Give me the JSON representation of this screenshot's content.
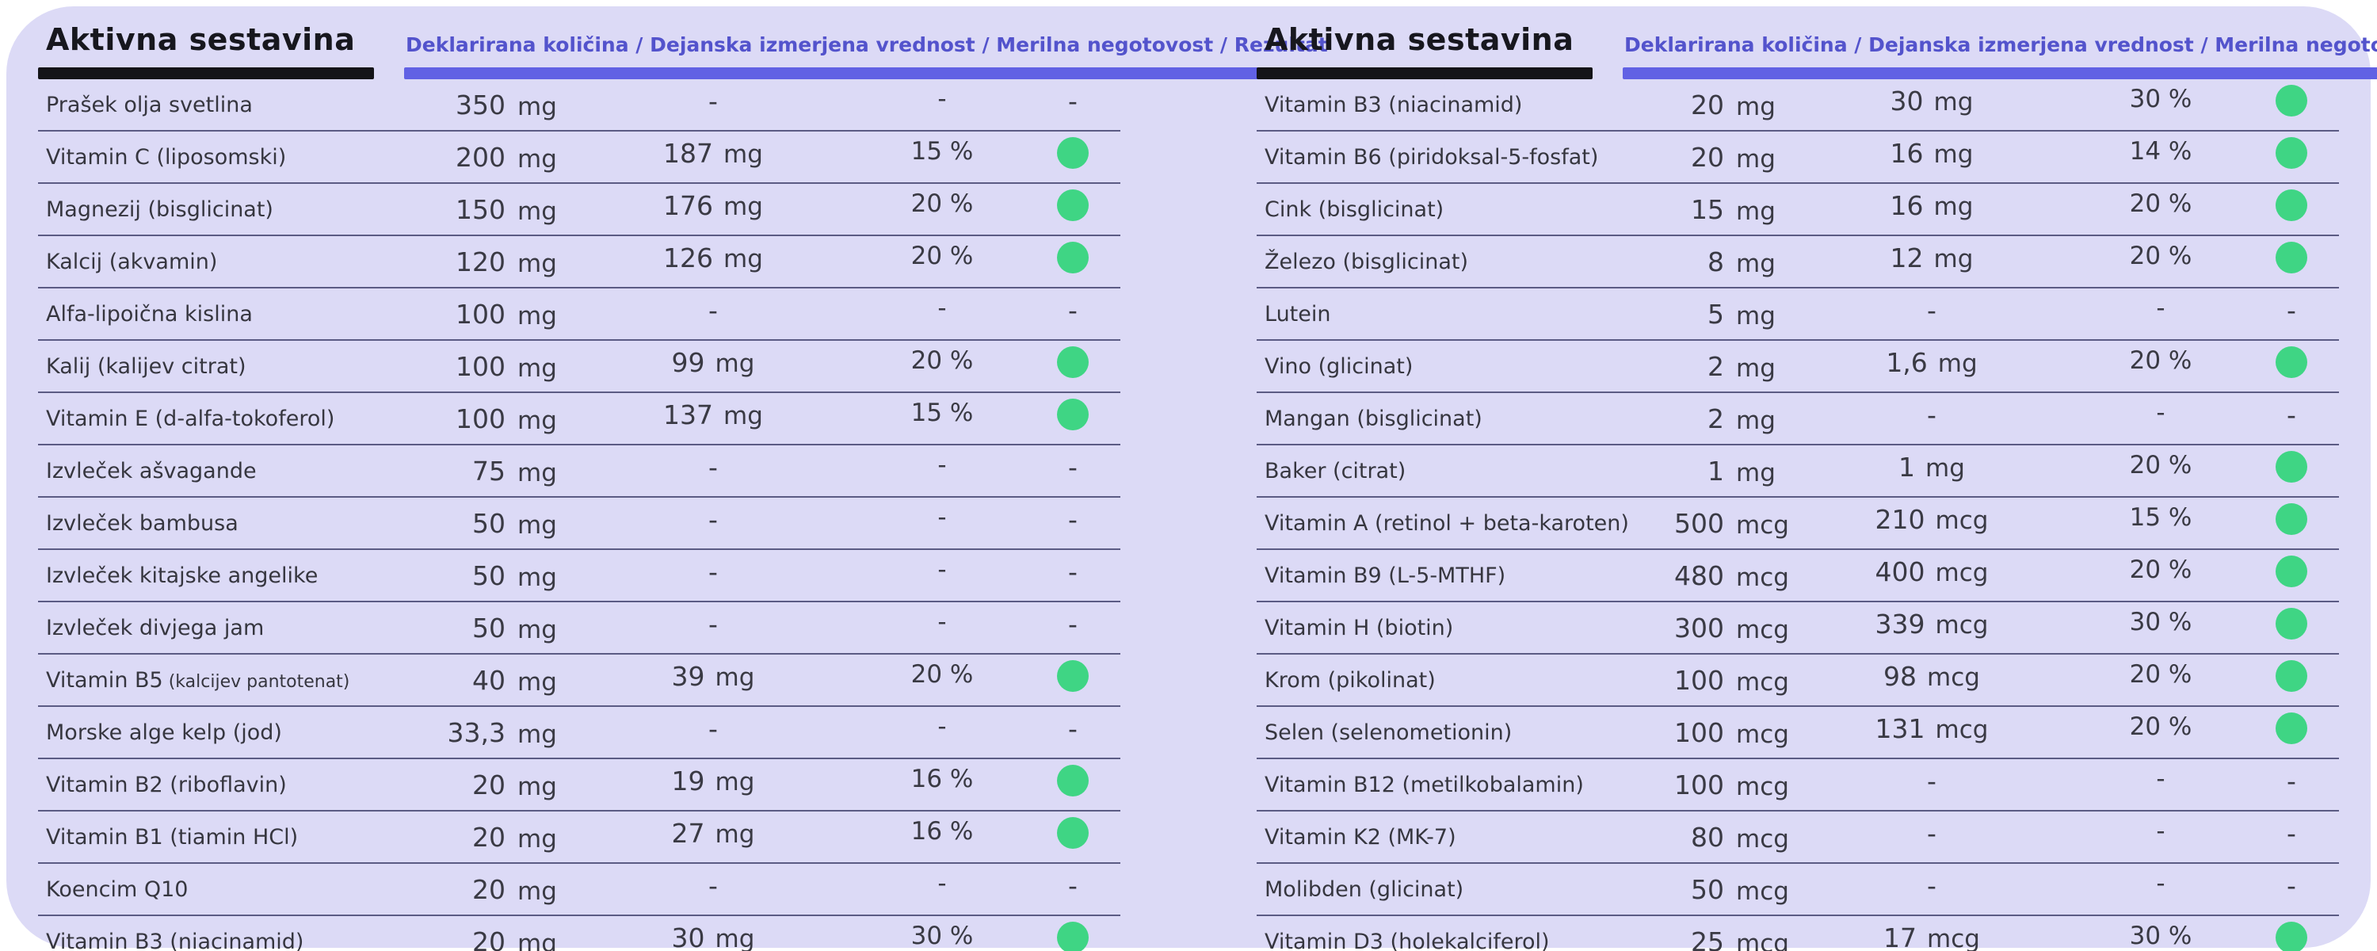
{
  "theme": {
    "cardbg": "#dcdaf6",
    "ink": "#17171e",
    "purpletext": "#5353cc",
    "purplebar": "#6161e4",
    "linecolor": "#5b5b84",
    "green": "#3fd584"
  },
  "tables": [
    {
      "title": "Aktivna sestavina",
      "columns_header": "Deklarirana količina / Dejanska izmerjena vrednost / Merilna negotovost / Rezultat",
      "rows": [
        {
          "name": "Prašek olja svetlina",
          "note": "",
          "qty": "350",
          "unit": "mg",
          "measured": "-",
          "m_unit": "",
          "uncertainty": "-",
          "result": "none",
          "result_text": "-"
        },
        {
          "name": "Vitamin C (liposomski)",
          "note": "",
          "qty": "200",
          "unit": "mg",
          "measured": "187",
          "m_unit": "mg",
          "uncertainty": "15 %",
          "result": "pass",
          "result_text": ""
        },
        {
          "name": "Magnezij (bisglicinat)",
          "note": "",
          "qty": "150",
          "unit": "mg",
          "measured": "176",
          "m_unit": "mg",
          "uncertainty": "20 %",
          "result": "pass",
          "result_text": ""
        },
        {
          "name": "Kalcij (akvamin)",
          "note": "",
          "qty": "120",
          "unit": "mg",
          "measured": "126",
          "m_unit": "mg",
          "uncertainty": "20 %",
          "result": "pass",
          "result_text": ""
        },
        {
          "name": "Alfa-lipoična kislina",
          "note": "",
          "qty": "100",
          "unit": "mg",
          "measured": "-",
          "m_unit": "",
          "uncertainty": "-",
          "result": "none",
          "result_text": "-"
        },
        {
          "name": "Kalij (kalijev citrat)",
          "note": "",
          "qty": "100",
          "unit": "mg",
          "measured": "99",
          "m_unit": "mg",
          "uncertainty": "20 %",
          "result": "pass",
          "result_text": ""
        },
        {
          "name": "Vitamin E (d-alfa-tokoferol)",
          "note": "",
          "qty": "100",
          "unit": "mg",
          "measured": "137",
          "m_unit": "mg",
          "uncertainty": "15 %",
          "result": "pass",
          "result_text": ""
        },
        {
          "name": "Izvleček ašvagande",
          "note": "",
          "qty": "75",
          "unit": "mg",
          "measured": "-",
          "m_unit": "",
          "uncertainty": "-",
          "result": "none",
          "result_text": "-"
        },
        {
          "name": "Izvleček bambusa",
          "note": "",
          "qty": "50",
          "unit": "mg",
          "measured": "-",
          "m_unit": "",
          "uncertainty": "-",
          "result": "none",
          "result_text": "-"
        },
        {
          "name": "Izvleček kitajske angelike",
          "note": "",
          "qty": "50",
          "unit": "mg",
          "measured": "-",
          "m_unit": "",
          "uncertainty": "-",
          "result": "none",
          "result_text": "-"
        },
        {
          "name": "Izvleček divjega jam",
          "note": "",
          "qty": "50",
          "unit": "mg",
          "measured": "-",
          "m_unit": "",
          "uncertainty": "-",
          "result": "none",
          "result_text": "-"
        },
        {
          "name": "Vitamin B5",
          "note": "(kalcijev pantotenat)",
          "qty": "40",
          "unit": "mg",
          "measured": "39",
          "m_unit": "mg",
          "uncertainty": "20 %",
          "result": "pass",
          "result_text": ""
        },
        {
          "name": "Morske alge kelp (jod)",
          "note": "",
          "qty": "33,3",
          "unit": "mg",
          "measured": "-",
          "m_unit": "",
          "uncertainty": "-",
          "result": "none",
          "result_text": "-"
        },
        {
          "name": "Vitamin B2 (riboflavin)",
          "note": "",
          "qty": "20",
          "unit": "mg",
          "measured": "19",
          "m_unit": "mg",
          "uncertainty": "16 %",
          "result": "pass",
          "result_text": ""
        },
        {
          "name": "Vitamin B1 (tiamin HCl)",
          "note": "",
          "qty": "20",
          "unit": "mg",
          "measured": "27",
          "m_unit": "mg",
          "uncertainty": "16 %",
          "result": "pass",
          "result_text": ""
        },
        {
          "name": "Koencim Q10",
          "note": "",
          "qty": "20",
          "unit": "mg",
          "measured": "-",
          "m_unit": "",
          "uncertainty": "-",
          "result": "none",
          "result_text": "-"
        },
        {
          "name": "Vitamin B3 (niacinamid)",
          "note": "",
          "qty": "20",
          "unit": "mg",
          "measured": "30",
          "m_unit": "mg",
          "uncertainty": "30 %",
          "result": "pass",
          "result_text": ""
        }
      ]
    },
    {
      "title": "Aktivna sestavina",
      "columns_header": "Deklarirana količina / Dejanska izmerjena vrednost / Merilna negotovost / Rezultat",
      "rows": [
        {
          "name": "Vitamin B3 (niacinamid)",
          "note": "",
          "qty": "20",
          "unit": "mg",
          "measured": "30",
          "m_unit": "mg",
          "uncertainty": "30 %",
          "result": "pass",
          "result_text": ""
        },
        {
          "name": "Vitamin B6 (piridoksal-5-fosfat)",
          "note": "",
          "qty": "20",
          "unit": "mg",
          "measured": "16",
          "m_unit": "mg",
          "uncertainty": "14 %",
          "result": "pass",
          "result_text": ""
        },
        {
          "name": "Cink (bisglicinat)",
          "note": "",
          "qty": "15",
          "unit": "mg",
          "measured": "16",
          "m_unit": "mg",
          "uncertainty": "20 %",
          "result": "pass",
          "result_text": ""
        },
        {
          "name": "Železo (bisglicinat)",
          "note": "",
          "qty": "8",
          "unit": "mg",
          "measured": "12",
          "m_unit": "mg",
          "uncertainty": "20 %",
          "result": "pass",
          "result_text": ""
        },
        {
          "name": "Lutein",
          "note": "",
          "qty": "5",
          "unit": "mg",
          "measured": "-",
          "m_unit": "",
          "uncertainty": "-",
          "result": "none",
          "result_text": "-"
        },
        {
          "name": "Vino (glicinat)",
          "note": "",
          "qty": "2",
          "unit": "mg",
          "measured": "1,6",
          "m_unit": "mg",
          "uncertainty": "20 %",
          "result": "pass",
          "result_text": ""
        },
        {
          "name": "Mangan (bisglicinat)",
          "note": "",
          "qty": "2",
          "unit": "mg",
          "measured": "-",
          "m_unit": "",
          "uncertainty": "-",
          "result": "none",
          "result_text": "-"
        },
        {
          "name": "Baker (citrat)",
          "note": "",
          "qty": "1",
          "unit": "mg",
          "measured": "1",
          "m_unit": "mg",
          "uncertainty": "20 %",
          "result": "pass",
          "result_text": ""
        },
        {
          "name": "Vitamin A (retinol + beta-karoten)",
          "note": "",
          "qty": "500",
          "unit": "mcg",
          "measured": "210",
          "m_unit": "mcg",
          "uncertainty": "15 %",
          "result": "pass",
          "result_text": ""
        },
        {
          "name": "Vitamin B9 (L-5-MTHF)",
          "note": "",
          "qty": "480",
          "unit": "mcg",
          "measured": "400",
          "m_unit": "mcg",
          "uncertainty": "20 %",
          "result": "pass",
          "result_text": ""
        },
        {
          "name": "Vitamin H (biotin)",
          "note": "",
          "qty": "300",
          "unit": "mcg",
          "measured": "339",
          "m_unit": "mcg",
          "uncertainty": "30 %",
          "result": "pass",
          "result_text": ""
        },
        {
          "name": "Krom (pikolinat)",
          "note": "",
          "qty": "100",
          "unit": "mcg",
          "measured": "98",
          "m_unit": "mcg",
          "uncertainty": "20 %",
          "result": "pass",
          "result_text": ""
        },
        {
          "name": "Selen (selenometionin)",
          "note": "",
          "qty": "100",
          "unit": "mcg",
          "measured": "131",
          "m_unit": "mcg",
          "uncertainty": "20 %",
          "result": "pass",
          "result_text": ""
        },
        {
          "name": "Vitamin B12 (metilkobalamin)",
          "note": "",
          "qty": "100",
          "unit": "mcg",
          "measured": "-",
          "m_unit": "",
          "uncertainty": "-",
          "result": "none",
          "result_text": "-"
        },
        {
          "name": "Vitamin K2 (MK-7)",
          "note": "",
          "qty": "80",
          "unit": "mcg",
          "measured": "-",
          "m_unit": "",
          "uncertainty": "-",
          "result": "none",
          "result_text": "-"
        },
        {
          "name": "Molibden (glicinat)",
          "note": "",
          "qty": "50",
          "unit": "mcg",
          "measured": "-",
          "m_unit": "",
          "uncertainty": "-",
          "result": "none",
          "result_text": "-"
        },
        {
          "name": "Vitamin D3 (holekalciferol)",
          "note": "",
          "qty": "25",
          "unit": "mcg",
          "measured": "17",
          "m_unit": "mcg",
          "uncertainty": "30 %",
          "result": "pass",
          "result_text": ""
        }
      ]
    }
  ]
}
